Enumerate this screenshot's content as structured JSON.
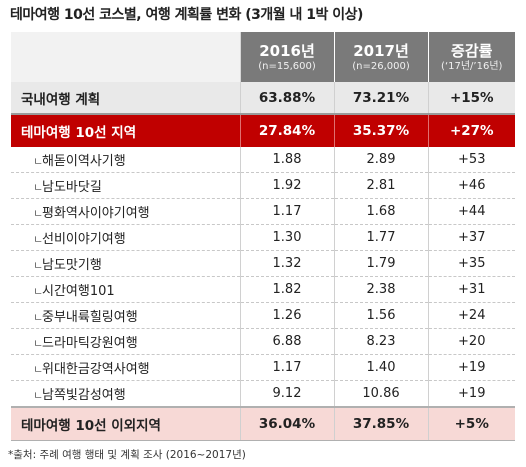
{
  "title": "테마여행 10선 코스별, 여행 계획률 변화 (3개월 내 1박 이상)",
  "header": {
    "col1_year": "2016년",
    "col1_n": "(n=15,600)",
    "col2_year": "2017년",
    "col2_n": "(n=26,000)",
    "col3_label": "증감률",
    "col3_sub": "(‘17년/’16년)"
  },
  "summary_row": {
    "label": "국내여행 계획",
    "v2016": "63.88%",
    "v2017": "73.21%",
    "change": "+15%"
  },
  "highlight_row": {
    "label": "테마여행 10선 지역",
    "v2016": "27.84%",
    "v2017": "35.37%",
    "change": "+27%"
  },
  "course_marker": "ㄴ",
  "courses": [
    {
      "label": "해돋이역사기행",
      "v2016": "1.88",
      "v2017": "2.89",
      "change": "+53"
    },
    {
      "label": "남도바닷길",
      "v2016": "1.92",
      "v2017": "2.81",
      "change": "+46"
    },
    {
      "label": "평화역사이야기여행",
      "v2016": "1.17",
      "v2017": "1.68",
      "change": "+44"
    },
    {
      "label": "선비이야기여행",
      "v2016": "1.30",
      "v2017": "1.77",
      "change": "+37"
    },
    {
      "label": "남도맛기행",
      "v2016": "1.32",
      "v2017": "1.79",
      "change": "+35"
    },
    {
      "label": "시간여행101",
      "v2016": "1.82",
      "v2017": "2.38",
      "change": "+31"
    },
    {
      "label": "중부내륙힐링여행",
      "v2016": "1.26",
      "v2017": "1.56",
      "change": "+24"
    },
    {
      "label": "드라마틱강원여행",
      "v2016": "6.88",
      "v2017": "8.23",
      "change": "+20"
    },
    {
      "label": "위대한금강역사여행",
      "v2016": "1.17",
      "v2017": "1.40",
      "change": "+19"
    },
    {
      "label": "남쪽빛감성여행",
      "v2016": "9.12",
      "v2017": "10.86",
      "change": "+19"
    }
  ],
  "other_row": {
    "label": "테마여행 10선 이외지역",
    "v2016": "36.04%",
    "v2017": "37.85%",
    "change": "+5%"
  },
  "source": "*출처: 주례 여행 행태 및 계획 조사 (2016~2017년)",
  "colors": {
    "header_bg": "#7a7a7a",
    "highlight_bg": "#c00000",
    "summary_bg": "#e9e9e9",
    "other_bg": "#f7d9d6"
  }
}
